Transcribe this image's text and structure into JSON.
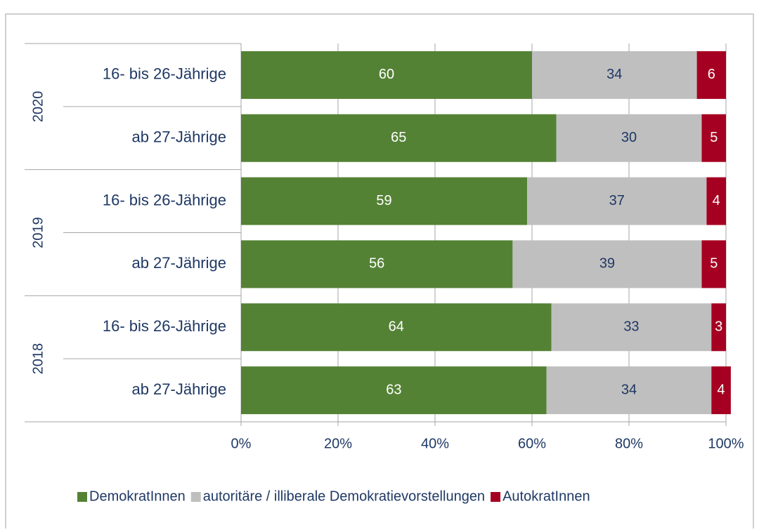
{
  "chart_data": {
    "type": "stacked-barh",
    "categories": [
      "16- bis 26-Jährige",
      "ab 27-Jährige",
      "16- bis 26-Jährige",
      "ab 27-Jährige",
      "16- bis 26-Jährige",
      "ab 27-Jährige"
    ],
    "groups": [
      "2020",
      "2019",
      "2018"
    ],
    "series": [
      {
        "name": "DemokratInnen",
        "color": "#548235",
        "values": [
          60,
          65,
          59,
          56,
          64,
          63
        ]
      },
      {
        "name": "autoritäre / illiberale Demokratievorstellungen",
        "color": "#bfbfbf",
        "values": [
          34,
          30,
          37,
          39,
          33,
          34
        ]
      },
      {
        "name": "AutokratInnen",
        "color": "#a50021",
        "values": [
          6,
          5,
          4,
          5,
          3,
          4
        ]
      }
    ],
    "xlim": [
      0,
      100
    ],
    "xticks": [
      {
        "value": 0,
        "label": "0%"
      },
      {
        "value": 20,
        "label": "20%"
      },
      {
        "value": 40,
        "label": "40%"
      },
      {
        "value": 60,
        "label": "60%"
      },
      {
        "value": 80,
        "label": "80%"
      },
      {
        "value": 100,
        "label": "100%"
      }
    ],
    "grid": true,
    "legend": "bottom"
  }
}
